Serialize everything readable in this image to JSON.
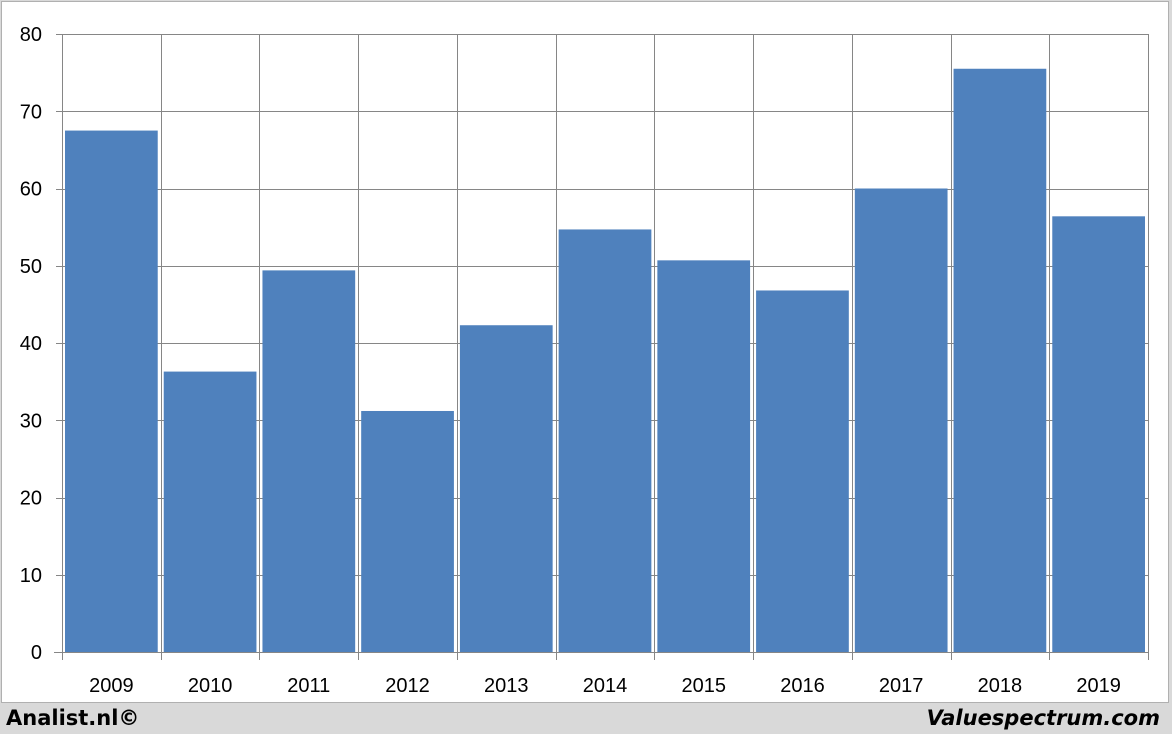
{
  "chart_data": {
    "type": "bar",
    "categories": [
      "2009",
      "2010",
      "2011",
      "2012",
      "2013",
      "2014",
      "2015",
      "2016",
      "2017",
      "2018",
      "2019"
    ],
    "values": [
      67.5,
      36.3,
      49.4,
      31.2,
      42.3,
      54.7,
      50.7,
      46.8,
      60.0,
      75.5,
      56.4
    ],
    "ylim": [
      0,
      80
    ],
    "yticks": [
      0,
      10,
      20,
      30,
      40,
      50,
      60,
      70,
      80
    ],
    "grid": true,
    "bar_color": "#4f81bd",
    "grid_color": "#868686"
  },
  "footer": {
    "left": "Analist.nl©",
    "right": "Valuespectrum.com"
  }
}
